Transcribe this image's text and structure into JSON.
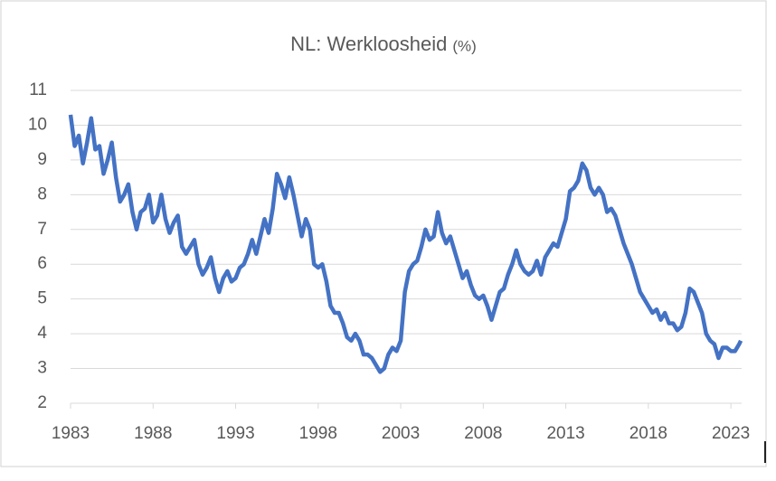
{
  "chart_data": {
    "type": "line",
    "title": "NL: Werkloosheid",
    "title_unit": "(%)",
    "x": [
      1983,
      1983.25,
      1983.5,
      1983.75,
      1984,
      1984.25,
      1984.5,
      1984.75,
      1985,
      1985.25,
      1985.5,
      1985.75,
      1986,
      1986.25,
      1986.5,
      1986.75,
      1987,
      1987.25,
      1987.5,
      1987.75,
      1988,
      1988.25,
      1988.5,
      1988.75,
      1989,
      1989.25,
      1989.5,
      1989.75,
      1990,
      1990.25,
      1990.5,
      1990.75,
      1991,
      1991.25,
      1991.5,
      1991.75,
      1992,
      1992.25,
      1992.5,
      1992.75,
      1993,
      1993.25,
      1993.5,
      1993.75,
      1994,
      1994.25,
      1994.5,
      1994.75,
      1995,
      1995.25,
      1995.5,
      1995.75,
      1996,
      1996.25,
      1996.5,
      1996.75,
      1997,
      1997.25,
      1997.5,
      1997.75,
      1998,
      1998.25,
      1998.5,
      1998.75,
      1999,
      1999.25,
      1999.5,
      1999.75,
      2000,
      2000.25,
      2000.5,
      2000.75,
      2001,
      2001.25,
      2001.5,
      2001.75,
      2002,
      2002.25,
      2002.5,
      2002.75,
      2003,
      2003.25,
      2003.5,
      2003.75,
      2004,
      2004.25,
      2004.5,
      2004.75,
      2005,
      2005.25,
      2005.5,
      2005.75,
      2006,
      2006.25,
      2006.5,
      2006.75,
      2007,
      2007.25,
      2007.5,
      2007.75,
      2008,
      2008.25,
      2008.5,
      2008.75,
      2009,
      2009.25,
      2009.5,
      2009.75,
      2010,
      2010.25,
      2010.5,
      2010.75,
      2011,
      2011.25,
      2011.5,
      2011.75,
      2012,
      2012.25,
      2012.5,
      2012.75,
      2013,
      2013.25,
      2013.5,
      2013.75,
      2014,
      2014.25,
      2014.5,
      2014.75,
      2015,
      2015.25,
      2015.5,
      2015.75,
      2016,
      2016.25,
      2016.5,
      2016.75,
      2017,
      2017.25,
      2017.5,
      2017.75,
      2018,
      2018.25,
      2018.5,
      2018.75,
      2019,
      2019.25,
      2019.5,
      2019.75,
      2020,
      2020.25,
      2020.5,
      2020.75,
      2021,
      2021.25,
      2021.5,
      2021.75,
      2022,
      2022.25,
      2022.5,
      2022.75,
      2023,
      2023.25,
      2023.5,
      2023.6
    ],
    "series": [
      {
        "name": "Werkloosheid",
        "color": "#4472c4",
        "values": [
          10.3,
          9.4,
          9.7,
          8.9,
          9.5,
          10.2,
          9.3,
          9.4,
          8.6,
          9.0,
          9.5,
          8.5,
          7.8,
          8.0,
          8.3,
          7.5,
          7.0,
          7.5,
          7.6,
          8.0,
          7.2,
          7.4,
          8.0,
          7.3,
          6.9,
          7.2,
          7.4,
          6.5,
          6.3,
          6.5,
          6.7,
          6.0,
          5.7,
          5.9,
          6.2,
          5.6,
          5.2,
          5.6,
          5.8,
          5.5,
          5.6,
          5.9,
          6.0,
          6.3,
          6.7,
          6.3,
          6.8,
          7.3,
          6.9,
          7.6,
          8.6,
          8.3,
          7.9,
          8.5,
          8.0,
          7.4,
          6.8,
          7.3,
          7.0,
          6.0,
          5.9,
          6.0,
          5.5,
          4.8,
          4.6,
          4.6,
          4.3,
          3.9,
          3.8,
          4.0,
          3.8,
          3.4,
          3.4,
          3.3,
          3.1,
          2.9,
          3.0,
          3.4,
          3.6,
          3.5,
          3.8,
          5.2,
          5.8,
          6.0,
          6.1,
          6.5,
          7.0,
          6.7,
          6.8,
          7.5,
          6.9,
          6.6,
          6.8,
          6.4,
          6.0,
          5.6,
          5.8,
          5.4,
          5.1,
          5.0,
          5.1,
          4.8,
          4.4,
          4.8,
          5.2,
          5.3,
          5.7,
          6.0,
          6.4,
          6.0,
          5.8,
          5.7,
          5.8,
          6.1,
          5.7,
          6.2,
          6.4,
          6.6,
          6.5,
          6.9,
          7.3,
          8.1,
          8.2,
          8.4,
          8.9,
          8.7,
          8.2,
          8.0,
          8.2,
          8.0,
          7.5,
          7.6,
          7.4,
          7.0,
          6.6,
          6.3,
          6.0,
          5.6,
          5.2,
          5.0,
          4.8,
          4.6,
          4.7,
          4.4,
          4.6,
          4.3,
          4.3,
          4.1,
          4.2,
          4.6,
          5.3,
          5.2,
          4.9,
          4.6,
          4.0,
          3.8,
          3.7,
          3.3,
          3.6,
          3.6,
          3.5,
          3.5,
          3.7,
          3.8
        ]
      }
    ],
    "xlim": [
      1983,
      2023.65
    ],
    "xticks": [
      1983,
      1988,
      1993,
      1998,
      2003,
      2008,
      2013,
      2018,
      2023
    ],
    "ylim": [
      2,
      11
    ],
    "yticks": [
      2,
      3,
      4,
      5,
      6,
      7,
      8,
      9,
      10,
      11
    ],
    "grid": true
  }
}
